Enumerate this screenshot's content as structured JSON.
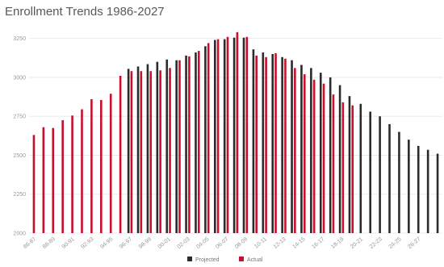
{
  "chart_data": {
    "type": "bar",
    "title": "Enrollment Trends 1986-2027",
    "xlabel": "",
    "ylabel": "",
    "ylim": [
      2000,
      3300
    ],
    "yticks": [
      2000,
      2250,
      2500,
      2750,
      3000,
      3250
    ],
    "grid": true,
    "legend_position": "bottom",
    "x_tick_labels": [
      "86-87",
      "88-89",
      "90-91",
      "92-93",
      "94-95",
      "96-97",
      "98-99",
      "00-01",
      "02-03",
      "04-05",
      "06-07",
      "08-09",
      "10-11",
      "12-13",
      "14-15",
      "16-17",
      "18-19",
      "20-21",
      "22-23",
      "24-25",
      "26-27"
    ],
    "series": [
      {
        "name": "Projected",
        "color": "#2b2b2b",
        "values": [
          null,
          null,
          null,
          null,
          null,
          null,
          null,
          null,
          null,
          null,
          3055,
          3070,
          3085,
          3100,
          3115,
          3110,
          3140,
          3160,
          3200,
          3240,
          3245,
          3255,
          3255,
          3180,
          3160,
          3150,
          3130,
          3110,
          3080,
          3060,
          3030,
          3000,
          2950,
          2880,
          2830,
          2780,
          2750,
          2700,
          2650,
          2600,
          2560,
          2535,
          2510
        ]
      },
      {
        "name": "Actual",
        "color": "#c8102e",
        "values": [
          2630,
          2680,
          2675,
          2725,
          2755,
          2795,
          2860,
          2855,
          2895,
          3010,
          3040,
          3040,
          3040,
          3045,
          3060,
          3110,
          3135,
          3170,
          3220,
          3245,
          3260,
          3290,
          3260,
          3140,
          3130,
          3155,
          3120,
          3060,
          3020,
          2985,
          2960,
          2890,
          2840,
          2820,
          null,
          null,
          null,
          null,
          null,
          null,
          null,
          null,
          null
        ]
      }
    ]
  }
}
